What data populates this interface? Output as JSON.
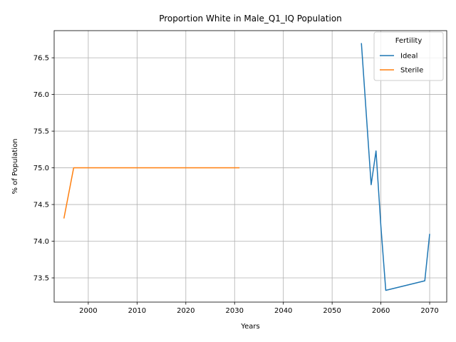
{
  "chart_data": {
    "type": "line",
    "title": "Proportion White in Male_Q1_IQ Population",
    "xlabel": "Years",
    "ylabel": "% of Population",
    "xlim": [
      1993,
      2073.5
    ],
    "ylim": [
      73.17,
      76.87
    ],
    "xticks": [
      2000,
      2010,
      2020,
      2030,
      2040,
      2050,
      2060,
      2070
    ],
    "yticks": [
      73.5,
      74.0,
      74.5,
      75.0,
      75.5,
      76.0,
      76.5
    ],
    "ytick_labels": [
      "73.5",
      "74.0",
      "74.5",
      "75.0",
      "75.5",
      "76.0",
      "76.5"
    ],
    "grid": true,
    "legend": {
      "title": "Fertility",
      "position": "upper right"
    },
    "series": [
      {
        "name": "Ideal",
        "color": "#1f77b4",
        "x": [
          2056,
          2058,
          2059,
          2060,
          2061,
          2069,
          2070
        ],
        "y": [
          76.7,
          74.77,
          75.23,
          74.2,
          73.33,
          73.46,
          74.1
        ]
      },
      {
        "name": "Sterile",
        "color": "#ff7f0e",
        "x": [
          1995,
          1997,
          2031
        ],
        "y": [
          74.31,
          75.0,
          75.0
        ]
      }
    ]
  }
}
